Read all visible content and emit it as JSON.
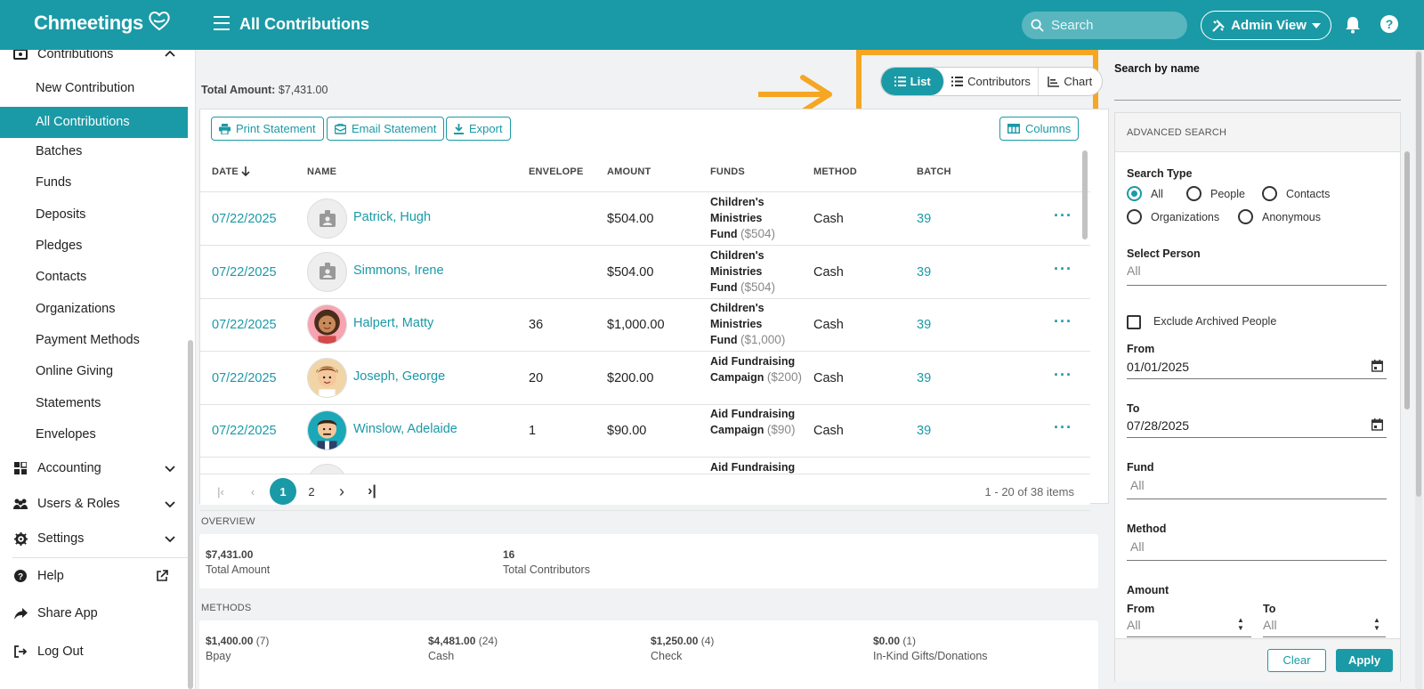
{
  "app": {
    "logo": "Chmeetings",
    "page_title": "All Contributions"
  },
  "topbar": {
    "search_placeholder": "Search",
    "admin_label": "Admin View"
  },
  "sidebar": {
    "section_contributions": "Contributions",
    "items": [
      "New Contribution",
      "All Contributions",
      "Batches",
      "Funds",
      "Deposits",
      "Pledges",
      "Contacts",
      "Organizations",
      "Payment Methods",
      "Online Giving",
      "Statements",
      "Envelopes"
    ],
    "accounting": "Accounting",
    "users_roles": "Users & Roles",
    "settings": "Settings",
    "help": "Help",
    "share_app": "Share App",
    "log_out": "Log Out"
  },
  "main": {
    "total_label": "Total Amount:",
    "total_value": "$7,431.00",
    "view_tabs": [
      "List",
      "Contributors",
      "Chart"
    ],
    "toolbar": {
      "print": "Print Statement",
      "email": "Email Statement",
      "export": "Export",
      "columns": "Columns"
    },
    "columns": [
      "DATE",
      "NAME",
      "ENVELOPE",
      "AMOUNT",
      "FUNDS",
      "METHOD",
      "BATCH"
    ],
    "rows": [
      {
        "date": "07/22/2025",
        "name": "Patrick, Hugh",
        "envelope": "",
        "amount": "$504.00",
        "fund_lines": [
          "Children's",
          "Ministries",
          "Fund"
        ],
        "fund_amt": "($504)",
        "method": "Cash",
        "batch": "39",
        "avatar": "placeholder"
      },
      {
        "date": "07/22/2025",
        "name": "Simmons, Irene",
        "envelope": "",
        "amount": "$504.00",
        "fund_lines": [
          "Children's",
          "Ministries",
          "Fund"
        ],
        "fund_amt": "($504)",
        "method": "Cash",
        "batch": "39",
        "avatar": "placeholder"
      },
      {
        "date": "07/22/2025",
        "name": "Halpert, Matty",
        "envelope": "36",
        "amount": "$1,000.00",
        "fund_lines": [
          "Children's",
          "Ministries",
          "Fund"
        ],
        "fund_amt": "($1,000)",
        "method": "Cash",
        "batch": "39",
        "avatar": "girl"
      },
      {
        "date": "07/22/2025",
        "name": "Joseph, George",
        "envelope": "20",
        "amount": "$200.00",
        "fund_lines": [
          "Aid Fundraising",
          "Campaign"
        ],
        "fund_amt": "($200)",
        "method": "Cash",
        "batch": "39",
        "avatar": "boy"
      },
      {
        "date": "07/22/2025",
        "name": "Winslow, Adelaide",
        "envelope": "1",
        "amount": "$90.00",
        "fund_lines": [
          "Aid Fundraising",
          "Campaign"
        ],
        "fund_amt": "($90)",
        "method": "Cash",
        "batch": "39",
        "avatar": "man"
      },
      {
        "date": "",
        "name": "",
        "envelope": "",
        "amount": "",
        "fund_lines": [
          "Aid Fundraising"
        ],
        "fund_amt": "",
        "method": "",
        "batch": "",
        "avatar": "placeholder"
      }
    ],
    "pager": {
      "pages": [
        "1",
        "2"
      ],
      "info": "1 - 20 of 38 items"
    },
    "overview": {
      "label": "OVERVIEW",
      "total_amount": "$7,431.00",
      "total_amount_label": "Total Amount",
      "contributors": "16",
      "contributors_label": "Total Contributors"
    },
    "methods": {
      "label": "METHODS",
      "items": [
        {
          "amount": "$1,400.00",
          "count": "(7)",
          "name": "Bpay"
        },
        {
          "amount": "$4,481.00",
          "count": "(24)",
          "name": "Cash"
        },
        {
          "amount": "$1,250.00",
          "count": "(4)",
          "name": "Check"
        },
        {
          "amount": "$0.00",
          "count": "(1)",
          "name": "In-Kind Gifts/Donations"
        }
      ]
    }
  },
  "right_panel": {
    "search_by_name": "Search by name",
    "advanced": "ADVANCED SEARCH",
    "search_type_label": "Search Type",
    "search_types": [
      "All",
      "People",
      "Contacts",
      "Organizations",
      "Anonymous"
    ],
    "search_type_selected": "All",
    "select_person_label": "Select Person",
    "select_person_value": "All",
    "exclude_archived": "Exclude Archived People",
    "from_label": "From",
    "from_value": "01/01/2025",
    "to_label": "To",
    "to_value": "07/28/2025",
    "fund_label": "Fund",
    "fund_placeholder": "All",
    "method_label": "Method",
    "method_placeholder": "All",
    "amount_label": "Amount",
    "amount_from_label": "From",
    "amount_to_label": "To",
    "amount_from_placeholder": "All",
    "amount_to_placeholder": "All",
    "clear": "Clear",
    "apply": "Apply"
  },
  "colors": {
    "accent": "#1a9aa6",
    "highlight": "#f5a623"
  }
}
